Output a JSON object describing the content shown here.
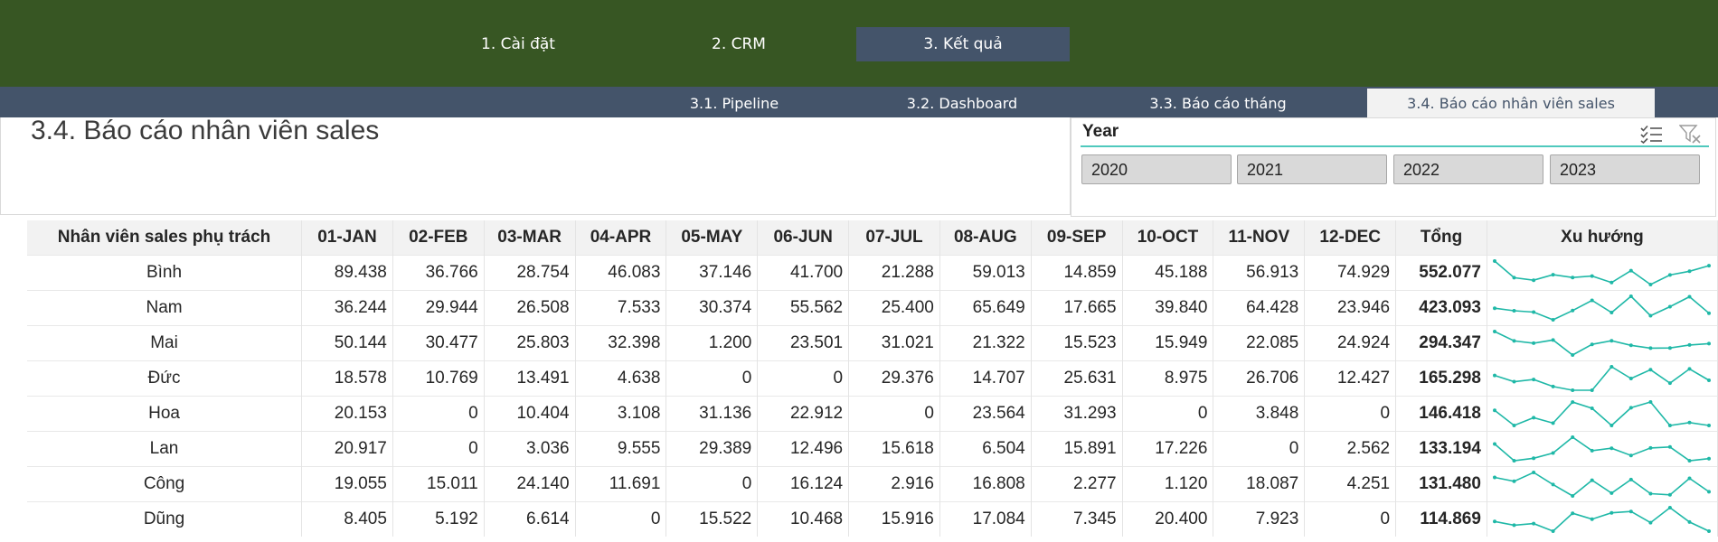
{
  "main_tabs": [
    {
      "label": "1. Cài đặt",
      "active": false
    },
    {
      "label": "2. CRM",
      "active": false
    },
    {
      "label": "3. Kết quả",
      "active": true
    }
  ],
  "sub_tabs": [
    {
      "label": "3.1. Pipeline",
      "active": false
    },
    {
      "label": "3.2. Dashboard",
      "active": false
    },
    {
      "label": "3.3. Báo cáo tháng",
      "active": false
    },
    {
      "label": "3.4. Báo cáo nhân viên sales",
      "active": true
    }
  ],
  "page_title": "3.4. Báo cáo nhân viên sales",
  "slicer": {
    "title": "Year",
    "multi_select_icon": "multi-select-icon",
    "clear_filter_icon": "clear-filter-icon",
    "options": [
      "2020",
      "2021",
      "2022",
      "2023"
    ]
  },
  "colors": {
    "top_bar": "#375623",
    "sub_bar": "#44546a",
    "accent": "#4fc9bd",
    "sparkline": "#1fb8a7"
  },
  "table": {
    "headers": [
      "Nhân viên sales phụ trách",
      "01-JAN",
      "02-FEB",
      "03-MAR",
      "04-APR",
      "05-MAY",
      "06-JUN",
      "07-JUL",
      "08-AUG",
      "09-SEP",
      "10-OCT",
      "11-NOV",
      "12-DEC",
      "Tổng",
      "Xu hướng"
    ],
    "rows": [
      {
        "name": "Bình",
        "months": [
          "89.438",
          "36.766",
          "28.754",
          "46.083",
          "37.146",
          "41.700",
          "21.288",
          "59.013",
          "14.859",
          "45.188",
          "56.913",
          "74.929"
        ],
        "total": "552.077"
      },
      {
        "name": "Nam",
        "months": [
          "36.244",
          "29.944",
          "26.508",
          "7.533",
          "30.374",
          "55.562",
          "25.400",
          "65.649",
          "17.665",
          "39.840",
          "64.428",
          "23.946"
        ],
        "total": "423.093"
      },
      {
        "name": "Mai",
        "months": [
          "50.144",
          "30.477",
          "25.803",
          "32.398",
          "1.200",
          "23.501",
          "31.021",
          "21.322",
          "15.523",
          "15.949",
          "22.085",
          "24.924"
        ],
        "total": "294.347"
      },
      {
        "name": "Đức",
        "months": [
          "18.578",
          "10.769",
          "13.491",
          "4.638",
          "0",
          "0",
          "29.376",
          "14.707",
          "25.631",
          "8.975",
          "26.706",
          "12.427"
        ],
        "total": "165.298"
      },
      {
        "name": "Hoa",
        "months": [
          "20.153",
          "0",
          "10.404",
          "3.108",
          "31.136",
          "22.912",
          "0",
          "23.564",
          "31.293",
          "0",
          "3.848",
          "0"
        ],
        "total": "146.418"
      },
      {
        "name": "Lan",
        "months": [
          "20.917",
          "0",
          "3.036",
          "9.555",
          "29.389",
          "12.496",
          "15.618",
          "6.504",
          "15.891",
          "17.226",
          "0",
          "2.562"
        ],
        "total": "133.194"
      },
      {
        "name": "Công",
        "months": [
          "19.055",
          "15.011",
          "24.140",
          "11.691",
          "0",
          "16.124",
          "2.916",
          "16.808",
          "2.277",
          "1.120",
          "18.087",
          "4.251"
        ],
        "total": "131.480"
      },
      {
        "name": "Dũng",
        "months": [
          "8.405",
          "5.192",
          "6.614",
          "0",
          "15.522",
          "10.468",
          "15.916",
          "17.084",
          "7.345",
          "20.400",
          "7.923",
          "0"
        ],
        "total": "114.869"
      }
    ]
  }
}
